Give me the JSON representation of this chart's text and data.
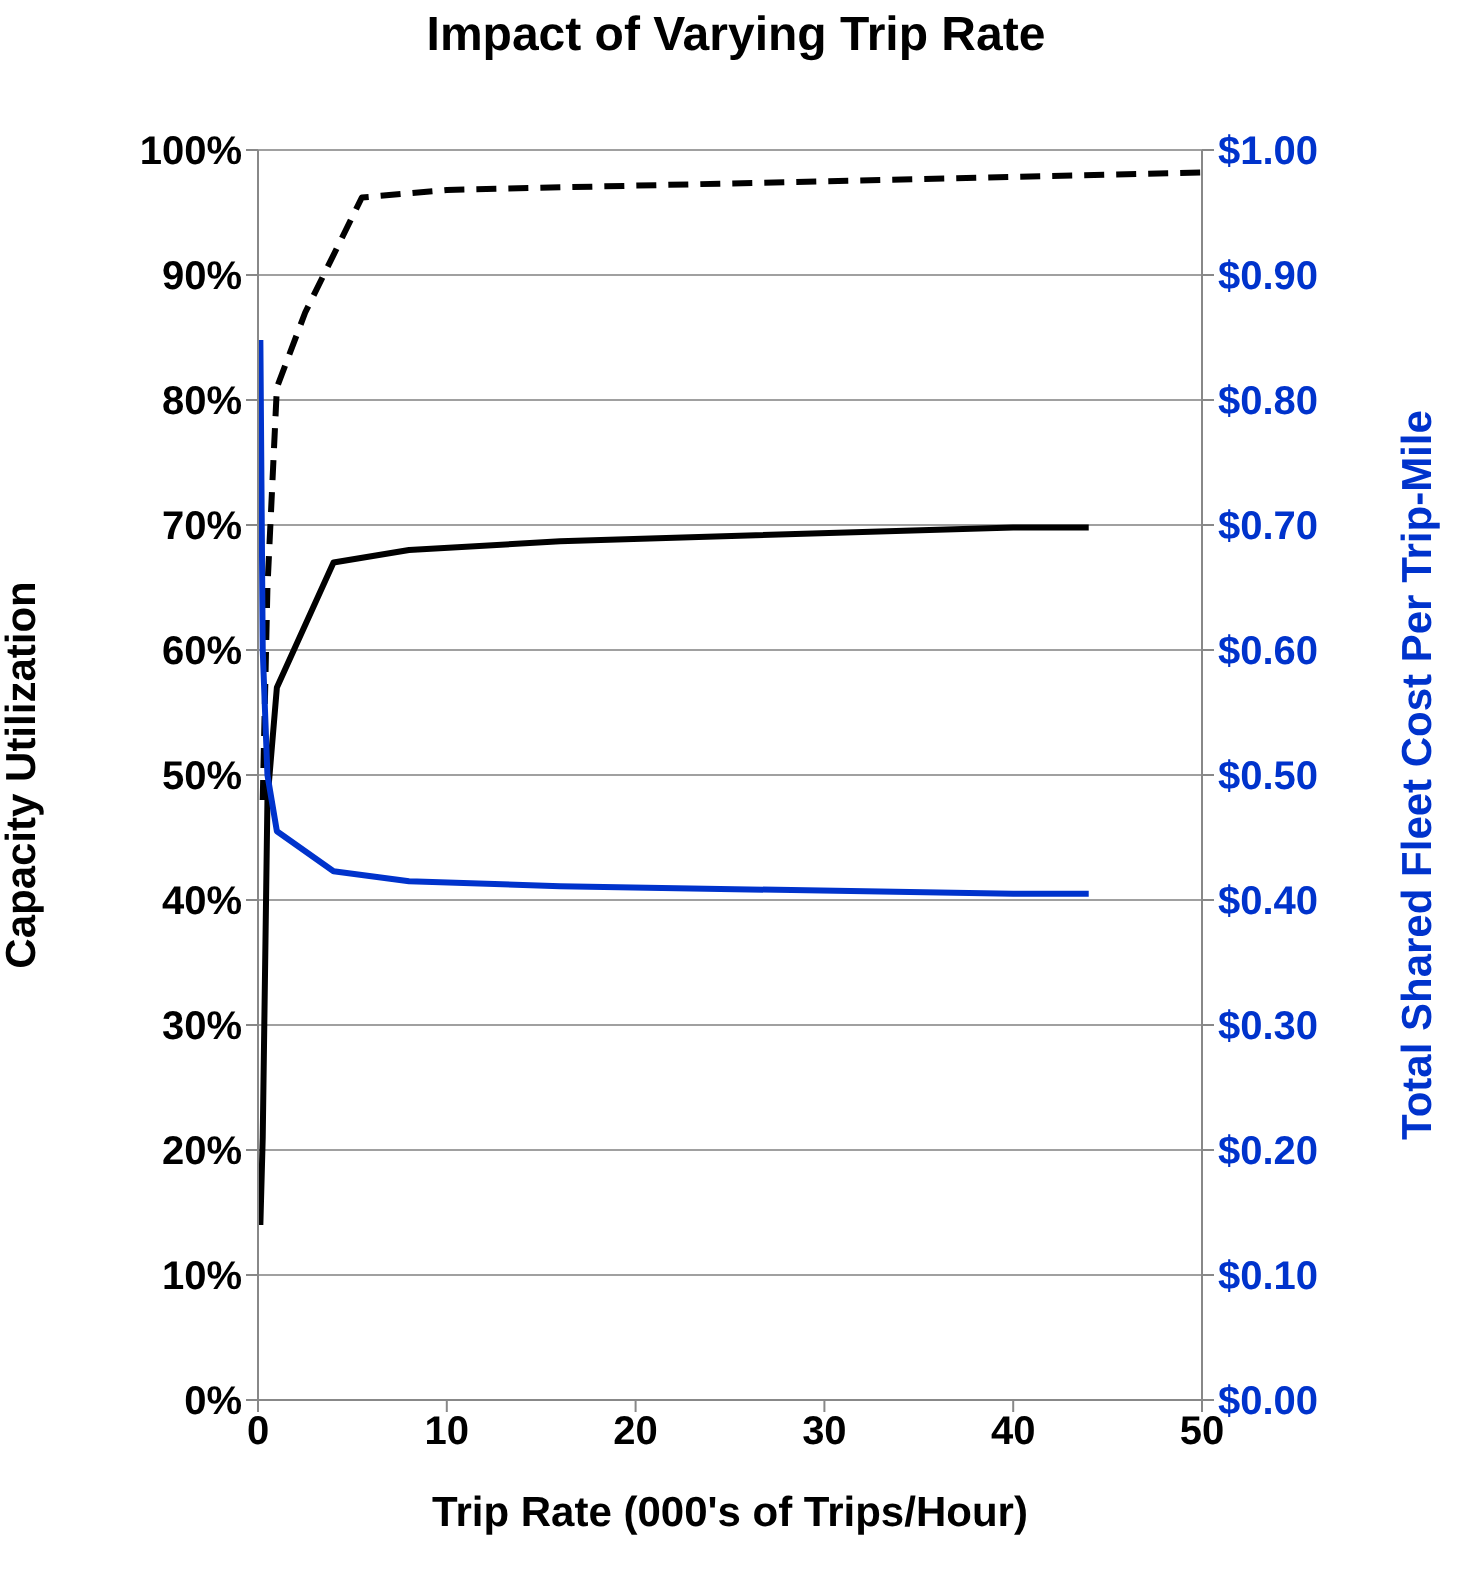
{
  "chart_data": {
    "type": "line",
    "title": "Impact of Varying Trip Rate",
    "xlabel": "Trip Rate (000's of Trips/Hour)",
    "ylabel": "Capacity Utilization",
    "y2label": "Total Shared Fleet Cost Per Trip-Mile",
    "xlim": [
      0,
      50
    ],
    "xticks": [
      0,
      10,
      20,
      30,
      40,
      50
    ],
    "ylim": [
      0,
      100
    ],
    "yticks": [
      {
        "value": 0,
        "label": "0%"
      },
      {
        "value": 10,
        "label": "10%"
      },
      {
        "value": 20,
        "label": "20%"
      },
      {
        "value": 30,
        "label": "30%"
      },
      {
        "value": 40,
        "label": "40%"
      },
      {
        "value": 50,
        "label": "50%"
      },
      {
        "value": 60,
        "label": "60%"
      },
      {
        "value": 70,
        "label": "70%"
      },
      {
        "value": 80,
        "label": "80%"
      },
      {
        "value": 90,
        "label": "90%"
      },
      {
        "value": 100,
        "label": "100%"
      }
    ],
    "y2lim": [
      0,
      1
    ],
    "y2ticks": [
      {
        "value": 0,
        "label": "$0.00"
      },
      {
        "value": 0.1,
        "label": "$0.10"
      },
      {
        "value": 0.2,
        "label": "$0.20"
      },
      {
        "value": 0.3,
        "label": "$0.30"
      },
      {
        "value": 0.4,
        "label": "$0.40"
      },
      {
        "value": 0.5,
        "label": "$0.50"
      },
      {
        "value": 0.6,
        "label": "$0.60"
      },
      {
        "value": 0.7,
        "label": "$0.70"
      },
      {
        "value": 0.8,
        "label": "$0.80"
      },
      {
        "value": 0.9,
        "label": "$0.90"
      },
      {
        "value": 1,
        "label": "$1.00"
      }
    ],
    "grid": "y",
    "marker": "none",
    "series": [
      {
        "color": "#000000",
        "line_style": "solid",
        "x": [
          0.125,
          0.25,
          0.5,
          1,
          4,
          8,
          16,
          40,
          44
        ],
        "values": [
          14,
          21,
          48,
          57,
          67,
          68,
          68.7,
          69.8,
          69.8
        ]
      },
      {
        "color": "#000000",
        "line_style": "dashed",
        "x": [
          0.25,
          0.5,
          1,
          2.5,
          5.5,
          10,
          50
        ],
        "values": [
          48,
          65,
          81,
          87,
          96.2,
          96.8,
          98.2
        ]
      },
      {
        "color": "#0033cc",
        "line_style": "solid",
        "axis": "y2",
        "x": [
          0.125,
          0.25,
          0.5,
          1,
          4,
          8,
          16,
          40,
          44
        ],
        "values": [
          0.848,
          0.6,
          0.5,
          0.455,
          0.423,
          0.415,
          0.411,
          0.405,
          0.405
        ]
      }
    ]
  }
}
